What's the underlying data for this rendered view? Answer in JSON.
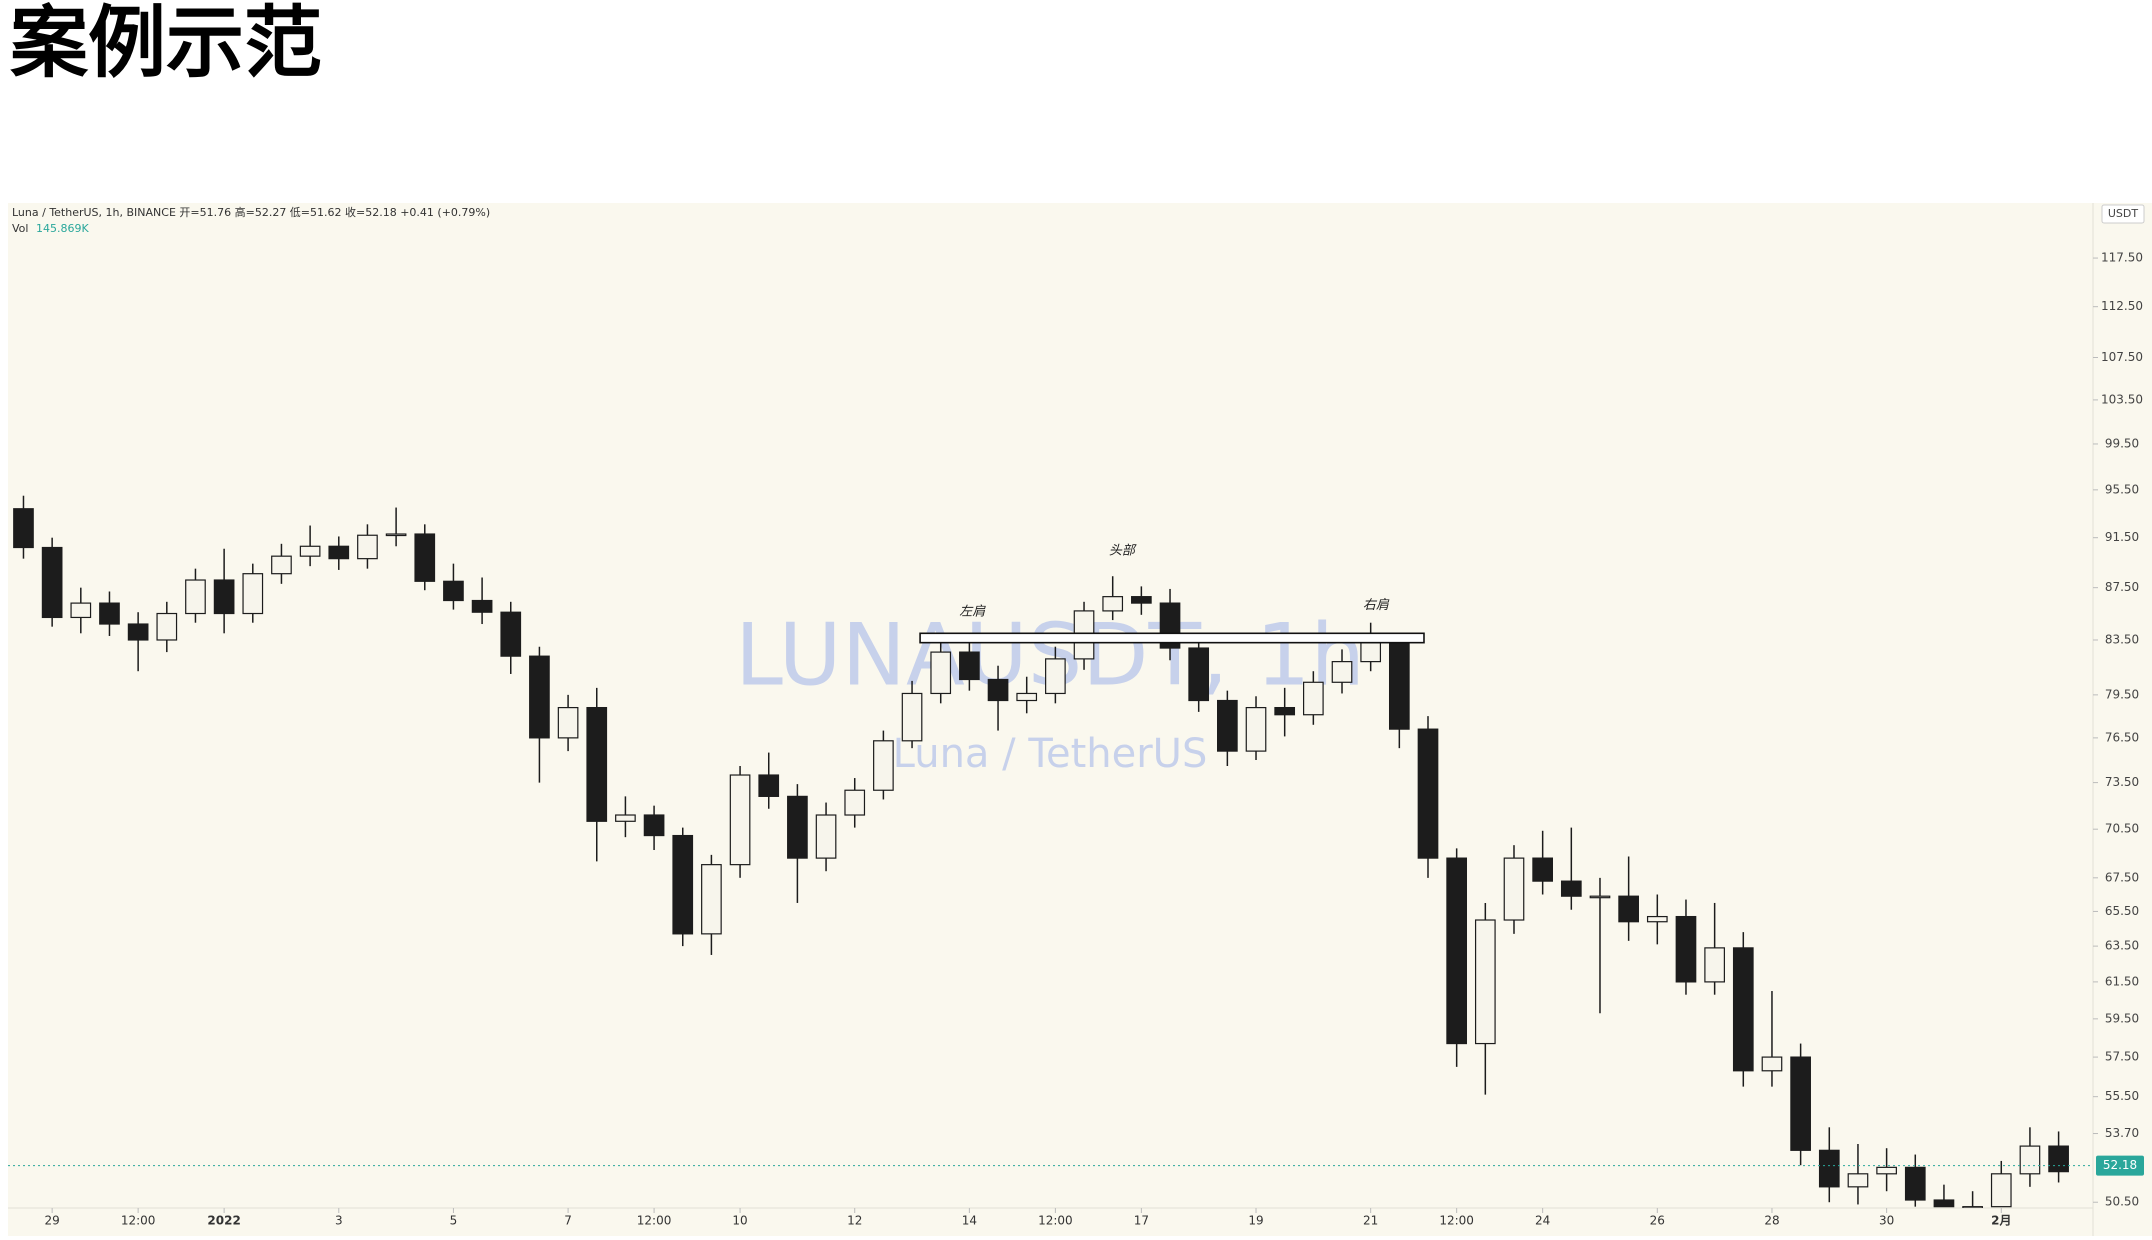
{
  "header": {
    "title": "案例示范"
  },
  "chart_data": {
    "type": "candlestick",
    "header_line": "Luna / TetherUS, 1h, BINANCE  开=51.76  高=52.27  低=51.62  收=52.18  +0.41 (+0.79%)",
    "volume_label": "Vol",
    "volume_value": "145.869K",
    "currency": "USDT",
    "watermark": "LUNAUSDT, 1h",
    "watermark_sub": "Luna / TetherUS",
    "log_scale": true,
    "grid": false,
    "colors": {
      "up": "#f7f5ec",
      "down": "#1c1c1c",
      "wick": "#1c1c1c",
      "price_tag": "#2aa79b",
      "watermark": "#b7c4ea"
    },
    "xlim": [
      -0.77,
      35.6
    ],
    "ylim": [
      50.24,
      123.1
    ],
    "xticks": [
      {
        "value": 0,
        "label": "29"
      },
      {
        "value": 1.5,
        "label": "12:00"
      },
      {
        "value": 3,
        "label": "2022"
      },
      {
        "value": 5,
        "label": "3"
      },
      {
        "value": 7,
        "label": "5"
      },
      {
        "value": 9,
        "label": "7"
      },
      {
        "value": 10.5,
        "label": "12:00"
      },
      {
        "value": 12,
        "label": "10"
      },
      {
        "value": 14,
        "label": "12"
      },
      {
        "value": 16,
        "label": "14"
      },
      {
        "value": 17.5,
        "label": "12:00"
      },
      {
        "value": 19,
        "label": "17"
      },
      {
        "value": 21,
        "label": "19"
      },
      {
        "value": 23,
        "label": "21"
      },
      {
        "value": 24.5,
        "label": "12:00"
      },
      {
        "value": 26,
        "label": "24"
      },
      {
        "value": 28,
        "label": "26"
      },
      {
        "value": 30,
        "label": "28"
      },
      {
        "value": 32,
        "label": "30"
      },
      {
        "value": 34,
        "label": "2月"
      }
    ],
    "yticks": [
      {
        "value": 117.5,
        "label": "117.50"
      },
      {
        "value": 112.5,
        "label": "112.50"
      },
      {
        "value": 107.5,
        "label": "107.50"
      },
      {
        "value": 103.5,
        "label": "103.50"
      },
      {
        "value": 99.5,
        "label": "99.50"
      },
      {
        "value": 95.5,
        "label": "95.50"
      },
      {
        "value": 91.5,
        "label": "91.50"
      },
      {
        "value": 87.5,
        "label": "87.50"
      },
      {
        "value": 83.5,
        "label": "83.50"
      },
      {
        "value": 79.5,
        "label": "79.50"
      },
      {
        "value": 76.5,
        "label": "76.50"
      },
      {
        "value": 73.5,
        "label": "73.50"
      },
      {
        "value": 70.5,
        "label": "70.50"
      },
      {
        "value": 67.5,
        "label": "67.50"
      },
      {
        "value": 65.5,
        "label": "65.50"
      },
      {
        "value": 63.5,
        "label": "63.50"
      },
      {
        "value": 61.5,
        "label": "61.50"
      },
      {
        "value": 59.5,
        "label": "59.50"
      },
      {
        "value": 57.5,
        "label": "57.50"
      },
      {
        "value": 55.5,
        "label": "55.50"
      },
      {
        "value": 53.7,
        "label": "53.70"
      },
      {
        "value": 50.5,
        "label": "50.50"
      }
    ],
    "x": [
      -0.5,
      0,
      0.5,
      1,
      1.5,
      2,
      2.5,
      3,
      3.5,
      4,
      4.5,
      5,
      5.5,
      6,
      6.5,
      7,
      7.5,
      8,
      8.5,
      9,
      9.5,
      10,
      10.5,
      11,
      11.5,
      12,
      12.5,
      13,
      13.5,
      14,
      14.5,
      15,
      15.5,
      16,
      16.5,
      17,
      17.5,
      18,
      18.5,
      19,
      19.5,
      20,
      20.5,
      21,
      21.5,
      22,
      22.5,
      23,
      23.5,
      24,
      24.5,
      25,
      25.5,
      26,
      26.5,
      27,
      27.5,
      28,
      28.5,
      29,
      29.5,
      30,
      30.5,
      31,
      31.5,
      32,
      32.5,
      33,
      33.5,
      34,
      34.5,
      35
    ],
    "open": [
      93.9,
      90.7,
      85.2,
      86.3,
      84.7,
      83.5,
      85.5,
      88.1,
      85.5,
      88.6,
      90.0,
      90.8,
      89.8,
      91.7,
      91.8,
      88.0,
      86.5,
      85.6,
      82.3,
      76.5,
      78.6,
      71.0,
      71.4,
      70.1,
      64.2,
      68.3,
      74.0,
      72.6,
      68.7,
      71.4,
      73.0,
      76.3,
      79.6,
      82.6,
      80.6,
      79.1,
      79.6,
      82.1,
      85.7,
      86.8,
      86.3,
      82.9,
      79.1,
      75.6,
      78.6,
      78.1,
      80.4,
      81.9,
      83.3,
      77.1,
      68.7,
      58.2,
      65.0,
      68.7,
      67.3,
      66.4,
      66.4,
      64.9,
      65.2,
      61.5,
      63.4,
      56.8,
      57.5,
      52.9,
      51.2,
      51.8,
      52.1,
      50.6,
      50.3,
      50.3,
      51.8,
      53.1
    ],
    "high": [
      95.0,
      91.5,
      87.5,
      87.2,
      85.6,
      86.4,
      89.0,
      90.6,
      89.4,
      91.0,
      92.5,
      91.6,
      92.6,
      94.0,
      92.6,
      89.4,
      88.3,
      86.4,
      83.0,
      79.5,
      80.0,
      72.6,
      72.0,
      70.6,
      68.9,
      74.6,
      75.5,
      73.4,
      72.2,
      73.8,
      77.0,
      80.5,
      83.6,
      84.0,
      81.6,
      80.8,
      83.0,
      86.4,
      88.4,
      87.6,
      87.4,
      83.5,
      79.8,
      79.4,
      80.0,
      81.2,
      82.8,
      84.8,
      84.0,
      78.0,
      69.3,
      66.0,
      69.5,
      70.4,
      70.6,
      67.5,
      68.8,
      66.5,
      66.2,
      66.0,
      64.3,
      61.0,
      58.2,
      54.0,
      53.2,
      53.0,
      52.7,
      51.3,
      51.0,
      52.4,
      54.0,
      53.8
    ],
    "low": [
      89.8,
      84.5,
      84.0,
      83.8,
      81.2,
      82.6,
      84.8,
      84.0,
      84.8,
      87.8,
      89.2,
      88.9,
      89.0,
      90.8,
      87.3,
      85.8,
      84.7,
      81.0,
      73.5,
      75.6,
      68.5,
      70.0,
      69.2,
      63.5,
      63.0,
      67.5,
      71.8,
      66.0,
      67.9,
      70.6,
      72.4,
      75.8,
      78.9,
      79.8,
      77.0,
      78.2,
      78.9,
      81.3,
      85.0,
      85.4,
      82.0,
      78.3,
      74.6,
      75.0,
      76.6,
      77.4,
      79.6,
      81.2,
      75.8,
      67.5,
      57.0,
      55.6,
      64.2,
      66.5,
      65.6,
      59.8,
      63.8,
      63.6,
      60.8,
      60.8,
      56.0,
      56.0,
      52.2,
      50.5,
      50.4,
      51.0,
      50.3,
      50.3,
      50.3,
      50.3,
      51.2,
      51.4
    ],
    "close": [
      90.7,
      85.2,
      86.3,
      84.7,
      83.5,
      85.5,
      88.1,
      85.5,
      88.6,
      90.0,
      90.8,
      89.8,
      91.7,
      91.8,
      88.0,
      86.5,
      85.6,
      82.3,
      76.5,
      78.6,
      71.0,
      71.4,
      70.1,
      64.2,
      68.3,
      74.0,
      72.6,
      68.7,
      71.4,
      73.0,
      76.3,
      79.6,
      82.6,
      80.6,
      79.1,
      79.6,
      82.1,
      85.7,
      86.8,
      86.3,
      82.9,
      79.1,
      75.6,
      78.6,
      78.1,
      80.4,
      81.9,
      83.3,
      77.1,
      68.7,
      58.2,
      65.0,
      68.7,
      67.3,
      66.4,
      66.4,
      64.9,
      65.2,
      61.5,
      63.4,
      56.8,
      57.5,
      52.9,
      51.2,
      51.8,
      52.1,
      50.6,
      50.3,
      50.3,
      51.8,
      53.1,
      51.9
    ],
    "neckline": {
      "from": 15.14,
      "to": 23.93,
      "low": 83.3,
      "high": 84.0
    },
    "annotations": [
      {
        "text": "左肩",
        "x": 16.05,
        "y": 85.6
      },
      {
        "text": "头部",
        "x": 18.66,
        "y": 90.4
      },
      {
        "text": "右肩",
        "x": 23.09,
        "y": 86.1
      }
    ],
    "last_price": {
      "value": 52.18,
      "label": "52.18"
    }
  }
}
